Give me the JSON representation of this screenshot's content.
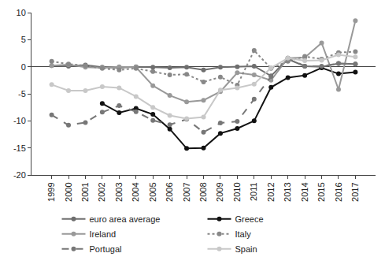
{
  "chart_data": {
    "type": "line",
    "categories": [
      "1999",
      "2000",
      "2001",
      "2002",
      "2003",
      "2004",
      "2005",
      "2006",
      "2007",
      "2008",
      "2009",
      "2010",
      "2011",
      "2012",
      "2013",
      "2014",
      "2015",
      "2016",
      "2017"
    ],
    "series": [
      {
        "name": "euro area average",
        "color": "#6e6e6e",
        "marker": "circle",
        "line_style": "solid",
        "values": [
          0.2,
          0.1,
          0.3,
          -0.1,
          -0.2,
          0.0,
          -0.1,
          -0.2,
          -0.1,
          -0.6,
          -0.1,
          0.0,
          0.1,
          -1.7,
          1.4,
          0.1,
          0.0,
          0.6,
          0.5
        ]
      },
      {
        "name": "Greece",
        "color": "#111111",
        "marker": "circle",
        "line_style": "solid",
        "values": [
          null,
          null,
          null,
          -6.8,
          -8.5,
          -7.7,
          -8.8,
          -11.5,
          -15.1,
          -15.0,
          -12.3,
          -11.4,
          -10.0,
          -3.8,
          -2.0,
          -1.6,
          -0.2,
          -1.3,
          -1.0
        ]
      },
      {
        "name": "Ireland",
        "color": "#999999",
        "marker": "circle",
        "line_style": "solid",
        "values": [
          0.2,
          0.4,
          -0.1,
          -0.2,
          0.0,
          -0.1,
          -3.5,
          -5.3,
          -6.5,
          -6.2,
          -4.6,
          -1.1,
          -1.5,
          -2.5,
          1.6,
          1.7,
          4.4,
          -4.2,
          8.5
        ]
      },
      {
        "name": "Italy",
        "color": "#888888",
        "marker": "circle",
        "line_style": "dot",
        "values": [
          1.0,
          0.5,
          0.2,
          -0.3,
          -0.6,
          -0.3,
          -0.9,
          -1.5,
          -1.4,
          -2.8,
          -1.9,
          -3.4,
          3.0,
          -0.3,
          1.0,
          1.9,
          1.4,
          2.6,
          2.8
        ]
      },
      {
        "name": "Portugal",
        "color": "#777777",
        "marker": "circle",
        "line_style": "dash",
        "values": [
          -8.9,
          -10.8,
          -10.3,
          -8.4,
          -7.2,
          -8.3,
          -9.9,
          -10.7,
          -9.7,
          -12.1,
          -10.4,
          -10.1,
          -6.0,
          -1.8,
          1.6,
          0.1,
          0.1,
          0.6,
          0.5
        ]
      },
      {
        "name": "Spain",
        "color": "#c8c8c8",
        "marker": "circle",
        "line_style": "solid",
        "values": [
          -3.3,
          -4.4,
          -4.4,
          -3.7,
          -3.9,
          -5.5,
          -7.5,
          -9.0,
          -9.6,
          -9.3,
          -4.3,
          -3.9,
          -3.2,
          -0.2,
          1.6,
          1.1,
          1.2,
          2.2,
          1.8
        ]
      }
    ],
    "ylim": [
      -20,
      10
    ],
    "yticks": [
      -20,
      -15,
      -10,
      -5,
      0,
      5,
      10
    ],
    "grid": false,
    "legend": "bottom"
  }
}
